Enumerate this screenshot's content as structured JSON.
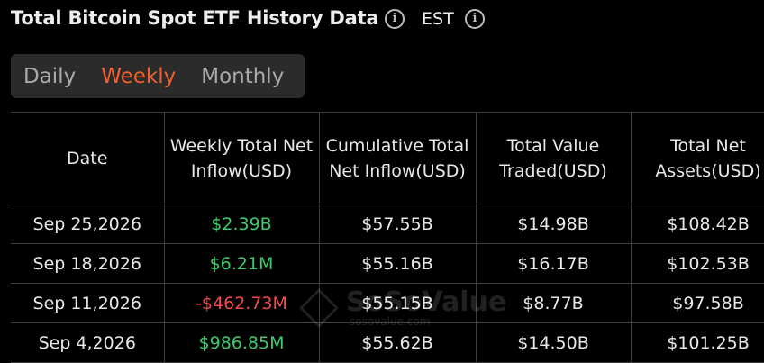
{
  "header": {
    "title": "Total Bitcoin Spot ETF History Data",
    "timezone": "EST"
  },
  "tabs": {
    "items": [
      "Daily",
      "Weekly",
      "Monthly"
    ],
    "active": 1
  },
  "table": {
    "columns": [
      "Date",
      "Weekly Total Net Inflow(USD)",
      "Cumulative Total Net Inflow(USD)",
      "Total Value Traded(USD)",
      "Total Net Assets(USD)"
    ],
    "rows": [
      [
        "Sep 25,2026",
        "$2.39B",
        "$57.55B",
        "$14.98B",
        "$108.42B"
      ],
      [
        "Sep 18,2026",
        "$6.21M",
        "$55.16B",
        "$16.17B",
        "$102.53B"
      ],
      [
        "Sep 11,2026",
        "-$462.73M",
        "$55.15B",
        "$8.77B",
        "$97.58B"
      ],
      [
        "Sep 4,2026",
        "$986.85M",
        "$55.62B",
        "$14.50B",
        "$101.25B"
      ]
    ]
  },
  "watermark": {
    "name": "SoSoValue",
    "site": "sosovalue.com"
  }
}
